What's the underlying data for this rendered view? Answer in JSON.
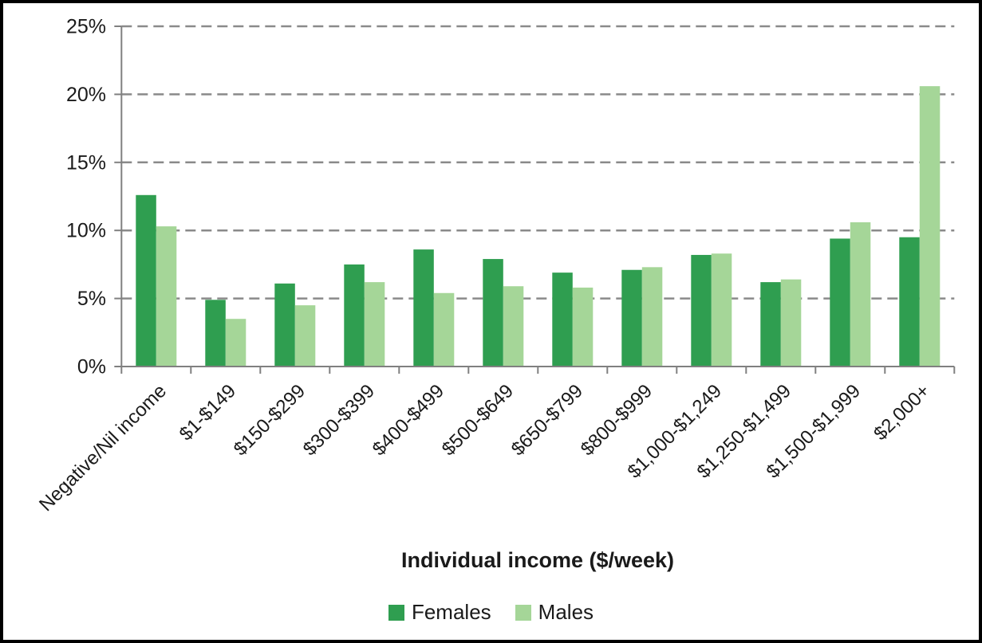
{
  "chart_data": {
    "type": "bar",
    "title": "",
    "xlabel": "Individual income ($/week)",
    "ylabel": "",
    "categories": [
      "Negative/Nil income",
      "$1-$149",
      "$150-$299",
      "$300-$399",
      "$400-$499",
      "$500-$649",
      "$650-$799",
      "$800-$999",
      "$1,000-$1,249",
      "$1,250-$1,499",
      "$1,500-$1,999",
      "$2,000+"
    ],
    "series": [
      {
        "name": "Females",
        "color": "#2f9e50",
        "values": [
          12.6,
          4.9,
          6.1,
          7.5,
          8.6,
          7.9,
          6.9,
          7.1,
          8.2,
          6.2,
          9.4,
          9.5
        ]
      },
      {
        "name": "Males",
        "color": "#a5d698",
        "values": [
          10.3,
          3.5,
          4.5,
          6.2,
          5.4,
          5.9,
          5.8,
          7.3,
          8.3,
          6.4,
          10.6,
          20.6
        ]
      }
    ],
    "ylim": [
      0,
      25
    ],
    "ytick_step": 5,
    "ytick_labels": [
      "0%",
      "5%",
      "10%",
      "15%",
      "20%",
      "25%"
    ],
    "grid": "horizontal-dashed",
    "legend_position": "bottom"
  },
  "styles": {
    "gridline_color": "#8a8a8a",
    "axis_color": "#808080",
    "text_color": "#1a1a1a",
    "frame_border_color": "#000000",
    "background_color": "#ffffff"
  }
}
